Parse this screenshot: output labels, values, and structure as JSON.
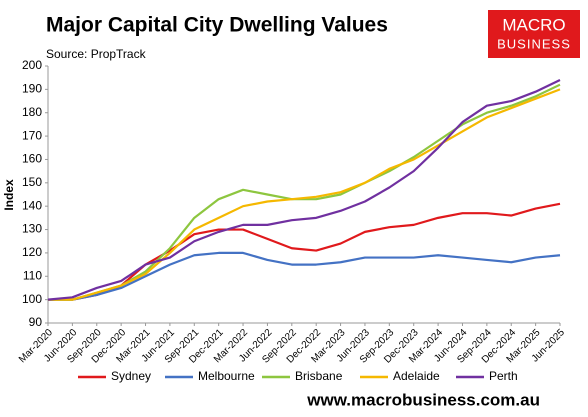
{
  "chart_data": {
    "type": "line",
    "title": "Major Capital City Dwelling Values",
    "subtitle": "Source: PropTrack",
    "y_label": "Index",
    "logo": {
      "line1": "MACRO",
      "line2": "BUSINESS"
    },
    "footer": "www.macrobusiness.com.au",
    "categories": [
      "Mar-2020",
      "Jun-2020",
      "Sep-2020",
      "Dec-2020",
      "Mar-2021",
      "Jun-2021",
      "Sep-2021",
      "Dec-2021",
      "Mar-2022",
      "Jun-2022",
      "Sep-2022",
      "Dec-2022",
      "Mar-2023",
      "Jun-2023",
      "Sep-2023",
      "Dec-2023",
      "Mar-2024",
      "Jun-2024",
      "Sep-2024",
      "Dec-2024",
      "Mar-2025",
      "Jun-2025"
    ],
    "series": [
      {
        "name": "Sydney",
        "color": "#e0191c",
        "values": [
          100,
          100,
          102,
          106,
          115,
          121,
          128,
          130,
          130,
          126,
          122,
          121,
          124,
          129,
          131,
          132,
          135,
          137,
          137,
          136,
          139,
          141
        ]
      },
      {
        "name": "Melbourne",
        "color": "#4472c4",
        "values": [
          100,
          100,
          102,
          105,
          110,
          115,
          119,
          120,
          120,
          117,
          115,
          115,
          116,
          118,
          118,
          118,
          119,
          118,
          117,
          116,
          118,
          119
        ]
      },
      {
        "name": "Brisbane",
        "color": "#8dc63f",
        "values": [
          100,
          100,
          103,
          106,
          112,
          122,
          135,
          143,
          147,
          145,
          143,
          143,
          145,
          150,
          155,
          161,
          168,
          175,
          180,
          183,
          187,
          192
        ]
      },
      {
        "name": "Adelaide",
        "color": "#f5b800",
        "values": [
          100,
          100,
          103,
          106,
          111,
          120,
          130,
          135,
          140,
          142,
          143,
          144,
          146,
          150,
          156,
          160,
          166,
          172,
          178,
          182,
          186,
          190
        ]
      },
      {
        "name": "Perth",
        "color": "#7030a0",
        "values": [
          100,
          101,
          105,
          108,
          115,
          118,
          125,
          129,
          132,
          132,
          134,
          135,
          138,
          142,
          148,
          155,
          165,
          176,
          183,
          185,
          189,
          194
        ]
      }
    ],
    "ylim": [
      90,
      200
    ],
    "yticks": [
      90,
      100,
      110,
      120,
      130,
      140,
      150,
      160,
      170,
      180,
      190,
      200
    ],
    "grid": false
  }
}
